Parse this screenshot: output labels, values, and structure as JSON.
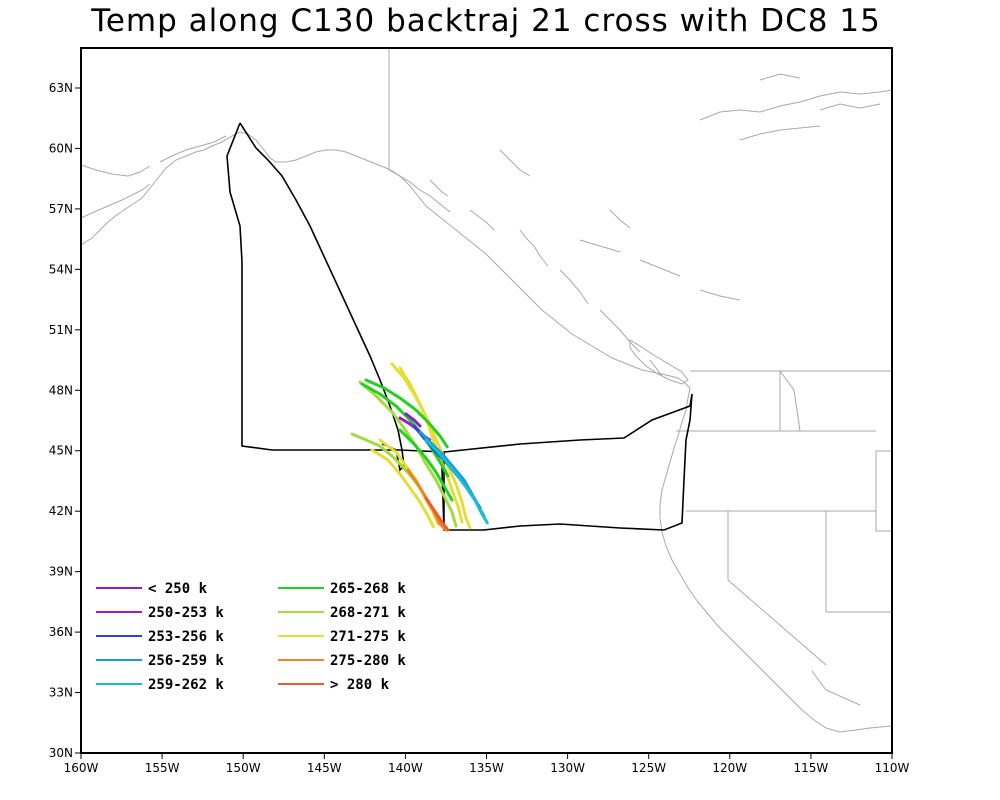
{
  "title": "Temp along C130 backtraj 21 cross with DC8 15",
  "axes": {
    "lon_ticks": [
      "160W",
      "155W",
      "150W",
      "145W",
      "140W",
      "135W",
      "130W",
      "125W",
      "120W",
      "115W",
      "110W"
    ],
    "lat_ticks": [
      "30N",
      "33N",
      "36N",
      "39N",
      "42N",
      "45N",
      "48N",
      "51N",
      "54N",
      "57N",
      "60N",
      "63N"
    ]
  },
  "legend": [
    {
      "label": "< 250 k",
      "color": "#8a1ec8"
    },
    {
      "label": "250-253 k",
      "color": "#a01ad2"
    },
    {
      "label": "253-256 k",
      "color": "#2846d8"
    },
    {
      "label": "256-259 k",
      "color": "#1e96e6"
    },
    {
      "label": "259-262 k",
      "color": "#14c0d2"
    },
    {
      "label": "265-268 k",
      "color": "#1ed21e"
    },
    {
      "label": "268-271 k",
      "color": "#a0dc3c"
    },
    {
      "label": "271-275 k",
      "color": "#e6dc32"
    },
    {
      "label": "275-280 k",
      "color": "#f08228"
    },
    {
      "label": "> 280 k",
      "color": "#f05a28"
    }
  ],
  "colors": {
    "coastline": "#a8a8a8",
    "flight_track": "#000000",
    "frame": "#000000"
  }
}
